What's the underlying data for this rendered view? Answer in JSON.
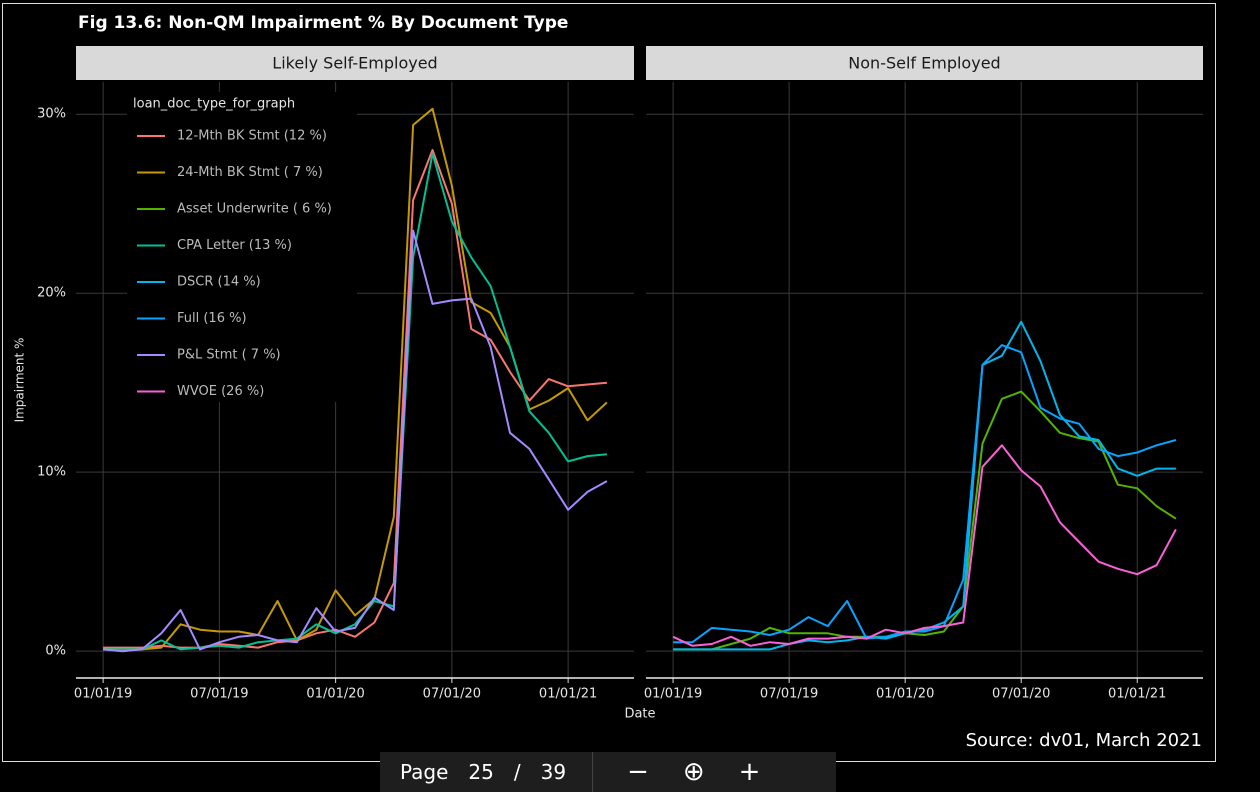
{
  "chart_data": {
    "type": "line",
    "title": "Fig 13.6: Non-QM Impairment % By Document Type",
    "xlabel": "Date",
    "ylabel": "Impairment %",
    "legend_title": "loan_doc_type_for_graph",
    "legend": "top-left",
    "grid": true,
    "source": "Source: dv01, March 2021",
    "categories": [
      "01/01/19",
      null,
      null,
      null,
      null,
      null,
      "07/01/19",
      null,
      null,
      null,
      null,
      null,
      "01/01/20",
      null,
      null,
      null,
      null,
      null,
      "07/01/20",
      null,
      null,
      null,
      null,
      null,
      "01/01/21",
      null,
      null
    ],
    "ylim": [
      -1.5,
      31.8
    ],
    "yticks": [
      {
        "value": 0,
        "label": "0%"
      },
      {
        "value": 10,
        "label": "10%"
      },
      {
        "value": 20,
        "label": "20%"
      },
      {
        "value": 30,
        "label": "30%"
      }
    ],
    "facets": [
      {
        "title": "Likely Self-Employed",
        "series": [
          {
            "name": "12-Mth BK Stmt (12 %)",
            "color": "#F8766D",
            "values": [
              0.2,
              0.2,
              0.2,
              0.3,
              0.2,
              0.2,
              0.4,
              0.3,
              0.2,
              0.5,
              0.6,
              1.0,
              1.2,
              0.8,
              1.6,
              3.8,
              25.2,
              28.0,
              25.0,
              18.0,
              17.4,
              15.6,
              14.0,
              15.2,
              14.8,
              14.9,
              15.0
            ]
          },
          {
            "name": "24-Mth BK Stmt ( 7 %)",
            "color": "#C49A00",
            "values": [
              0.1,
              0.1,
              0.1,
              0.2,
              1.5,
              1.2,
              1.1,
              1.1,
              0.9,
              2.8,
              0.6,
              1.2,
              3.4,
              2.0,
              2.9,
              7.5,
              29.4,
              30.3,
              26.0,
              19.5,
              18.9,
              17.0,
              13.5,
              14.0,
              14.7,
              12.9,
              13.9
            ]
          },
          {
            "name": "CPA Letter (13 %)",
            "color": "#00C094",
            "values": [
              0.1,
              0.1,
              0.1,
              0.6,
              0.1,
              0.2,
              0.3,
              0.2,
              0.5,
              0.6,
              0.7,
              1.5,
              1.0,
              1.5,
              2.8,
              2.5,
              22.0,
              27.8,
              24.0,
              22.0,
              20.4,
              17.0,
              13.4,
              12.2,
              10.6,
              10.9,
              11.0
            ]
          },
          {
            "name": "P&L Stmt ( 7 %)",
            "color": "#A58AFF",
            "values": [
              0.1,
              0.0,
              0.1,
              1.0,
              2.3,
              0.1,
              0.5,
              0.8,
              0.9,
              0.6,
              0.5,
              2.4,
              1.1,
              1.3,
              3.0,
              2.3,
              23.5,
              19.4,
              19.6,
              19.7,
              17.0,
              12.2,
              11.3,
              9.6,
              7.9,
              8.9,
              9.5
            ]
          }
        ]
      },
      {
        "title": "Non-Self Employed",
        "series": [
          {
            "name": "Asset Underwrite ( 6 %)",
            "color": "#53B400",
            "values": [
              0.1,
              0.1,
              0.1,
              0.4,
              0.7,
              1.3,
              1.0,
              1.0,
              1.0,
              0.8,
              0.8,
              0.8,
              1.0,
              0.9,
              1.1,
              2.5,
              11.6,
              14.1,
              14.5,
              13.4,
              12.2,
              11.9,
              11.7,
              9.3,
              9.1,
              8.1,
              7.4
            ]
          },
          {
            "name": "DSCR (14 %)",
            "color": "#00B6EB",
            "values": [
              0.1,
              0.1,
              0.1,
              0.1,
              0.1,
              0.1,
              0.4,
              0.6,
              0.5,
              0.6,
              0.8,
              0.7,
              1.0,
              1.2,
              1.6,
              2.5,
              16.0,
              16.5,
              18.4,
              16.2,
              13.2,
              12.0,
              11.8,
              10.2,
              9.8,
              10.2,
              10.2
            ]
          },
          {
            "name": "Full (16 %)",
            "color": "#06A4FF",
            "values": [
              0.5,
              0.5,
              1.3,
              1.2,
              1.1,
              0.9,
              1.2,
              1.9,
              1.4,
              2.8,
              0.7,
              0.8,
              1.1,
              1.1,
              1.4,
              4.0,
              16.0,
              17.1,
              16.7,
              13.6,
              13.0,
              12.7,
              11.3,
              10.9,
              11.1,
              11.5,
              11.8
            ]
          },
          {
            "name": "WVOE (26 %)",
            "color": "#FB61D7",
            "values": [
              0.8,
              0.3,
              0.4,
              0.8,
              0.3,
              0.5,
              0.4,
              0.7,
              0.7,
              0.8,
              0.7,
              1.2,
              1.0,
              1.3,
              1.4,
              1.6,
              10.3,
              11.5,
              10.1,
              9.2,
              7.2,
              6.1,
              5.0,
              4.6,
              4.3,
              4.8,
              6.8
            ]
          }
        ]
      }
    ]
  },
  "toolbar": {
    "page_label": "Page",
    "page": "25",
    "separator": "/",
    "total": "39",
    "zoom_out": "−",
    "zoom_reset": "⊕",
    "zoom_in": "+"
  }
}
